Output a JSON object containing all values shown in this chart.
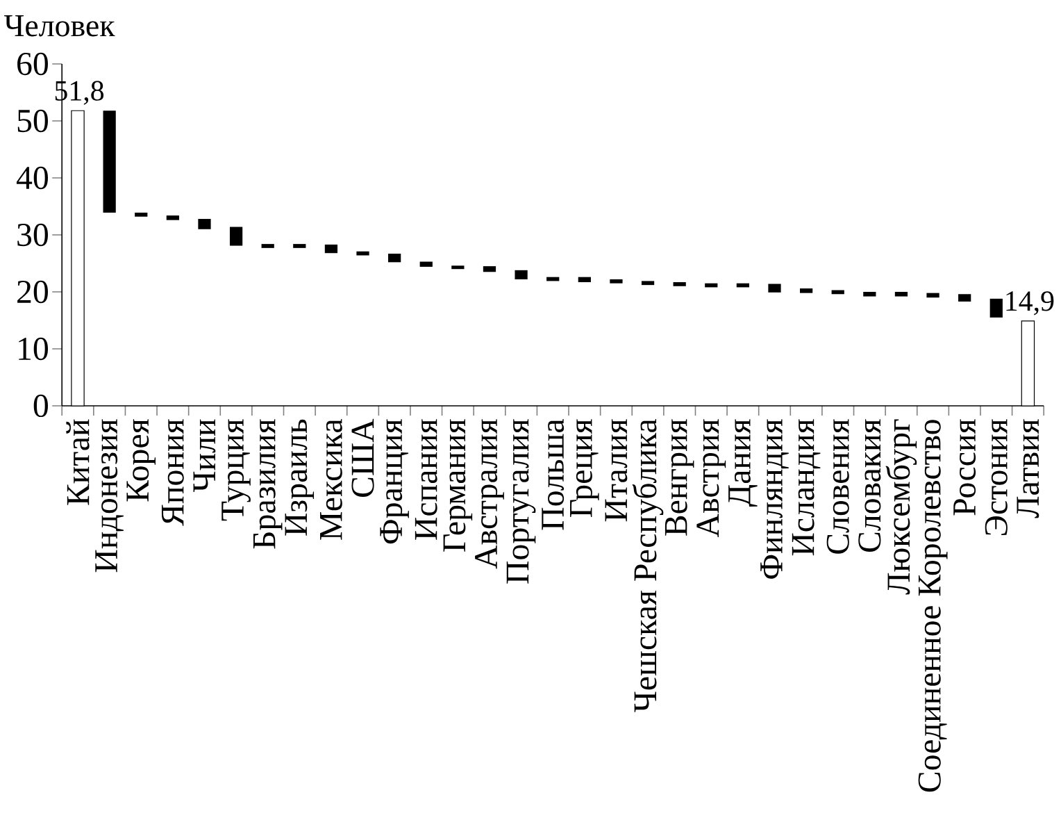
{
  "chart_data": {
    "type": "bar",
    "ylabel": "Человек",
    "categories": [
      "Китай",
      "Индонезия",
      "Корея",
      "Япония",
      "Чили",
      "Турция",
      "Бразилия",
      "Израиль",
      "Мексика",
      "США",
      "Франция",
      "Испания",
      "Германия",
      "Австралия",
      "Португалия",
      "Польша",
      "Греция",
      "Италия",
      "Чешская Республика",
      "Венгрия",
      "Австрия",
      "Дания",
      "Финляндия",
      "Исландия",
      "Словения",
      "Словакия",
      "Люксембург",
      "Соединенное Королевство",
      "Россия",
      "Эстония",
      "Латвия"
    ],
    "values": [
      51.8,
      17.9,
      0.7,
      0.8,
      1.8,
      3.3,
      0.7,
      0.7,
      1.5,
      0.7,
      1.5,
      0.9,
      0.6,
      1.0,
      1.6,
      0.7,
      0.9,
      0.7,
      0.7,
      0.7,
      0.7,
      0.7,
      1.5,
      0.8,
      0.7,
      0.8,
      0.8,
      0.8,
      1.3,
      3.3,
      14.9
    ],
    "base": [
      0,
      33.9,
      33.2,
      32.6,
      31.0,
      28.1,
      27.7,
      27.7,
      26.8,
      26.4,
      25.2,
      24.4,
      24.0,
      23.5,
      22.2,
      21.9,
      21.7,
      21.5,
      21.2,
      21.0,
      20.8,
      20.8,
      19.9,
      19.8,
      19.6,
      19.2,
      19.2,
      19.0,
      18.3,
      15.5,
      0
    ],
    "colors": [
      "#ffffff",
      "#000000",
      "#000000",
      "#000000",
      "#000000",
      "#000000",
      "#000000",
      "#000000",
      "#000000",
      "#000000",
      "#000000",
      "#000000",
      "#000000",
      "#000000",
      "#000000",
      "#000000",
      "#000000",
      "#000000",
      "#000000",
      "#000000",
      "#000000",
      "#000000",
      "#000000",
      "#000000",
      "#000000",
      "#000000",
      "#000000",
      "#000000",
      "#000000",
      "#000000",
      "#ffffff"
    ],
    "value_labels": [
      "51,8",
      null,
      null,
      null,
      null,
      null,
      null,
      null,
      null,
      null,
      null,
      null,
      null,
      null,
      null,
      null,
      null,
      null,
      null,
      null,
      null,
      null,
      null,
      null,
      null,
      null,
      null,
      null,
      null,
      null,
      "14,9"
    ],
    "ylim": [
      0,
      60
    ],
    "yticks": [
      0,
      10,
      20,
      30,
      40,
      50,
      60
    ]
  }
}
